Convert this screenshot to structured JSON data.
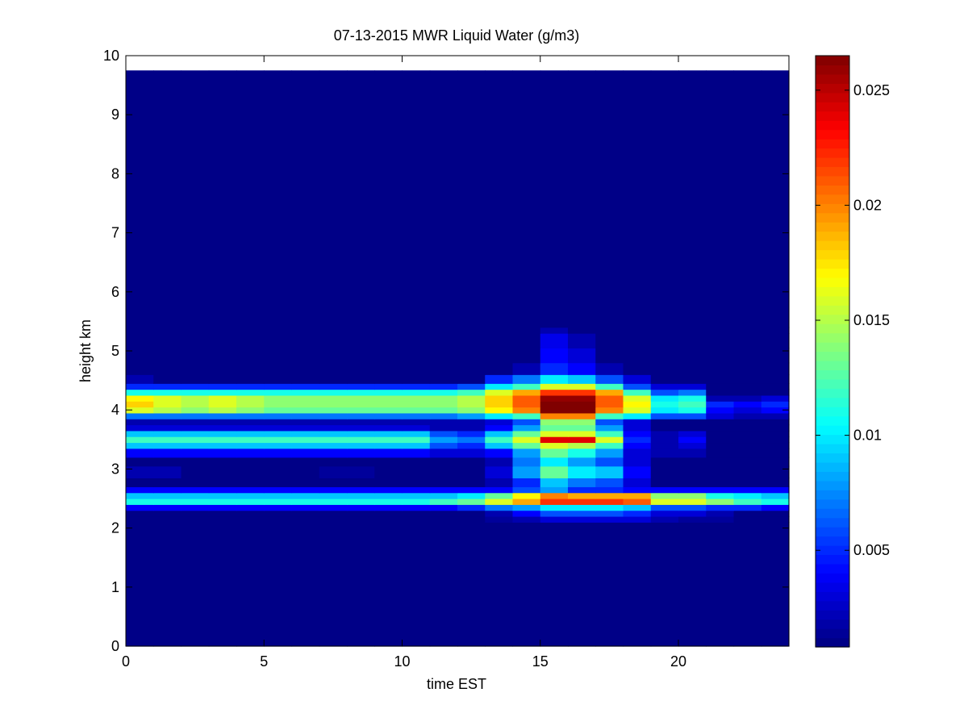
{
  "chart_data": {
    "type": "heatmap",
    "title": "07-13-2015 MWR Liquid Water (g/m3)",
    "xlabel": "time EST",
    "ylabel": "height km",
    "xlim": [
      0,
      24
    ],
    "ylim": [
      0,
      10
    ],
    "x_ticks": [
      0,
      5,
      10,
      15,
      20
    ],
    "y_ticks": [
      0,
      1,
      2,
      3,
      4,
      5,
      6,
      7,
      8,
      9,
      10
    ],
    "colormap": "jet",
    "color_limits": [
      0.0008,
      0.0265
    ],
    "colorbar_ticks": [
      0.005,
      0.01,
      0.015,
      0.02,
      0.025
    ],
    "colorbar_tick_labels": [
      "0.005",
      "0.01",
      "0.015",
      "0.02",
      "0.025"
    ],
    "time_hours": [
      0,
      1,
      2,
      3,
      4,
      5,
      6,
      7,
      8,
      9,
      10,
      11,
      12,
      13,
      14,
      15,
      16,
      17,
      18,
      19,
      20,
      21,
      22,
      23
    ],
    "height_bins_km": [
      [
        0,
        2.1
      ],
      [
        2.1,
        2.2
      ],
      [
        2.2,
        2.3
      ],
      [
        2.3,
        2.4
      ],
      [
        2.4,
        2.5
      ],
      [
        2.5,
        2.6
      ],
      [
        2.6,
        2.7
      ],
      [
        2.7,
        2.85
      ],
      [
        2.85,
        3.05
      ],
      [
        3.05,
        3.2
      ],
      [
        3.2,
        3.35
      ],
      [
        3.35,
        3.45
      ],
      [
        3.45,
        3.55
      ],
      [
        3.55,
        3.65
      ],
      [
        3.65,
        3.75
      ],
      [
        3.75,
        3.85
      ],
      [
        3.85,
        3.95
      ],
      [
        3.95,
        4.05
      ],
      [
        4.05,
        4.15
      ],
      [
        4.15,
        4.25
      ],
      [
        4.25,
        4.35
      ],
      [
        4.35,
        4.45
      ],
      [
        4.45,
        4.6
      ],
      [
        4.6,
        4.8
      ],
      [
        4.8,
        5.05
      ],
      [
        5.05,
        5.3
      ],
      [
        5.3,
        5.4
      ],
      [
        5.4,
        9.75
      ]
    ],
    "liquid_water_g_m3": [
      [
        0.001,
        0.001,
        0.001,
        0.001,
        0.001,
        0.001,
        0.001,
        0.001,
        0.001,
        0.001,
        0.001,
        0.001,
        0.001,
        0.001,
        0.001,
        0.001,
        0.001,
        0.001,
        0.001,
        0.001,
        0.001,
        0.001,
        0.001,
        0.001
      ],
      [
        0.001,
        0.001,
        0.001,
        0.001,
        0.001,
        0.001,
        0.001,
        0.001,
        0.001,
        0.001,
        0.001,
        0.001,
        0.001,
        0.0015,
        0.002,
        0.003,
        0.003,
        0.003,
        0.003,
        0.002,
        0.0015,
        0.0015,
        0.001,
        0.001
      ],
      [
        0.001,
        0.001,
        0.001,
        0.001,
        0.001,
        0.001,
        0.001,
        0.001,
        0.001,
        0.001,
        0.001,
        0.001,
        0.001,
        0.002,
        0.004,
        0.006,
        0.006,
        0.006,
        0.005,
        0.003,
        0.003,
        0.002,
        0.001,
        0.001
      ],
      [
        0.004,
        0.004,
        0.004,
        0.004,
        0.004,
        0.004,
        0.004,
        0.004,
        0.004,
        0.004,
        0.004,
        0.004,
        0.005,
        0.007,
        0.008,
        0.01,
        0.01,
        0.01,
        0.009,
        0.006,
        0.006,
        0.005,
        0.005,
        0.004
      ],
      [
        0.011,
        0.011,
        0.011,
        0.011,
        0.011,
        0.011,
        0.011,
        0.011,
        0.011,
        0.011,
        0.011,
        0.012,
        0.013,
        0.016,
        0.019,
        0.022,
        0.022,
        0.022,
        0.021,
        0.016,
        0.016,
        0.014,
        0.012,
        0.011
      ],
      [
        0.009,
        0.009,
        0.009,
        0.009,
        0.009,
        0.009,
        0.009,
        0.009,
        0.009,
        0.009,
        0.009,
        0.009,
        0.01,
        0.013,
        0.017,
        0.02,
        0.019,
        0.019,
        0.019,
        0.014,
        0.014,
        0.011,
        0.01,
        0.009
      ],
      [
        0.004,
        0.004,
        0.004,
        0.004,
        0.004,
        0.004,
        0.004,
        0.004,
        0.004,
        0.004,
        0.004,
        0.004,
        0.004,
        0.004,
        0.006,
        0.008,
        0.005,
        0.005,
        0.004,
        0.004,
        0.004,
        0.004,
        0.004,
        0.004
      ],
      [
        0.001,
        0.001,
        0.001,
        0.001,
        0.001,
        0.001,
        0.001,
        0.001,
        0.001,
        0.001,
        0.001,
        0.001,
        0.001,
        0.002,
        0.005,
        0.009,
        0.007,
        0.006,
        0.003,
        0.001,
        0.001,
        0.001,
        0.001,
        0.001
      ],
      [
        0.002,
        0.002,
        0.001,
        0.001,
        0.001,
        0.001,
        0.001,
        0.0015,
        0.0015,
        0.001,
        0.001,
        0.001,
        0.001,
        0.003,
        0.008,
        0.013,
        0.01,
        0.009,
        0.004,
        0.001,
        0.001,
        0.001,
        0.001,
        0.001
      ],
      [
        0.001,
        0.001,
        0.001,
        0.001,
        0.001,
        0.001,
        0.001,
        0.001,
        0.001,
        0.001,
        0.001,
        0.001,
        0.001,
        0.002,
        0.007,
        0.01,
        0.008,
        0.006,
        0.003,
        0.001,
        0.001,
        0.001,
        0.001,
        0.001
      ],
      [
        0.004,
        0.004,
        0.004,
        0.004,
        0.004,
        0.004,
        0.004,
        0.004,
        0.004,
        0.004,
        0.004,
        0.003,
        0.003,
        0.004,
        0.008,
        0.013,
        0.011,
        0.008,
        0.003,
        0.002,
        0.002,
        0.001,
        0.001,
        0.001
      ],
      [
        0.009,
        0.009,
        0.009,
        0.009,
        0.009,
        0.009,
        0.009,
        0.009,
        0.009,
        0.009,
        0.009,
        0.006,
        0.005,
        0.009,
        0.013,
        0.016,
        0.015,
        0.012,
        0.004,
        0.002,
        0.003,
        0.001,
        0.001,
        0.001
      ],
      [
        0.012,
        0.012,
        0.012,
        0.012,
        0.012,
        0.012,
        0.012,
        0.012,
        0.012,
        0.012,
        0.012,
        0.008,
        0.007,
        0.012,
        0.016,
        0.024,
        0.024,
        0.016,
        0.005,
        0.002,
        0.004,
        0.001,
        0.001,
        0.001
      ],
      [
        0.009,
        0.009,
        0.009,
        0.009,
        0.009,
        0.009,
        0.009,
        0.009,
        0.009,
        0.009,
        0.009,
        0.006,
        0.005,
        0.009,
        0.013,
        0.016,
        0.016,
        0.012,
        0.004,
        0.002,
        0.003,
        0.001,
        0.001,
        0.001
      ],
      [
        0.003,
        0.003,
        0.003,
        0.003,
        0.003,
        0.003,
        0.003,
        0.003,
        0.003,
        0.003,
        0.003,
        0.002,
        0.002,
        0.004,
        0.008,
        0.013,
        0.013,
        0.008,
        0.003,
        0.001,
        0.001,
        0.001,
        0.001,
        0.001
      ],
      [
        0.002,
        0.002,
        0.002,
        0.002,
        0.002,
        0.002,
        0.002,
        0.002,
        0.002,
        0.002,
        0.002,
        0.002,
        0.002,
        0.003,
        0.006,
        0.014,
        0.014,
        0.006,
        0.003,
        0.001,
        0.001,
        0.001,
        0.001,
        0.001
      ],
      [
        0.007,
        0.007,
        0.007,
        0.007,
        0.007,
        0.007,
        0.007,
        0.007,
        0.007,
        0.007,
        0.007,
        0.007,
        0.008,
        0.01,
        0.012,
        0.02,
        0.02,
        0.012,
        0.01,
        0.006,
        0.006,
        0.003,
        0.002,
        0.002
      ],
      [
        0.016,
        0.015,
        0.014,
        0.015,
        0.014,
        0.013,
        0.013,
        0.013,
        0.013,
        0.013,
        0.013,
        0.013,
        0.014,
        0.017,
        0.02,
        0.0265,
        0.0265,
        0.02,
        0.016,
        0.01,
        0.011,
        0.004,
        0.003,
        0.004
      ],
      [
        0.018,
        0.016,
        0.015,
        0.016,
        0.015,
        0.014,
        0.014,
        0.014,
        0.014,
        0.014,
        0.014,
        0.014,
        0.015,
        0.018,
        0.021,
        0.0265,
        0.0265,
        0.021,
        0.017,
        0.011,
        0.012,
        0.005,
        0.004,
        0.005
      ],
      [
        0.017,
        0.016,
        0.015,
        0.016,
        0.015,
        0.014,
        0.014,
        0.014,
        0.014,
        0.014,
        0.014,
        0.014,
        0.015,
        0.018,
        0.021,
        0.026,
        0.026,
        0.021,
        0.016,
        0.01,
        0.011,
        0.002,
        0.002,
        0.003
      ],
      [
        0.011,
        0.011,
        0.011,
        0.011,
        0.011,
        0.011,
        0.011,
        0.011,
        0.011,
        0.011,
        0.011,
        0.011,
        0.012,
        0.016,
        0.019,
        0.022,
        0.022,
        0.019,
        0.012,
        0.006,
        0.007,
        0.001,
        0.001,
        0.001
      ],
      [
        0.005,
        0.005,
        0.005,
        0.005,
        0.005,
        0.005,
        0.005,
        0.005,
        0.005,
        0.005,
        0.005,
        0.005,
        0.006,
        0.01,
        0.012,
        0.016,
        0.016,
        0.012,
        0.006,
        0.003,
        0.003,
        0.001,
        0.001,
        0.001
      ],
      [
        0.002,
        0.001,
        0.001,
        0.001,
        0.001,
        0.001,
        0.001,
        0.001,
        0.001,
        0.001,
        0.001,
        0.001,
        0.001,
        0.005,
        0.007,
        0.01,
        0.009,
        0.006,
        0.003,
        0.001,
        0.001,
        0.001,
        0.001,
        0.001
      ],
      [
        0.001,
        0.001,
        0.001,
        0.001,
        0.001,
        0.001,
        0.001,
        0.001,
        0.001,
        0.001,
        0.001,
        0.001,
        0.001,
        0.001,
        0.002,
        0.005,
        0.004,
        0.002,
        0.001,
        0.001,
        0.001,
        0.001,
        0.001,
        0.001
      ],
      [
        0.001,
        0.001,
        0.001,
        0.001,
        0.001,
        0.001,
        0.001,
        0.001,
        0.001,
        0.001,
        0.001,
        0.001,
        0.001,
        0.001,
        0.001,
        0.004,
        0.003,
        0.001,
        0.001,
        0.001,
        0.001,
        0.001,
        0.001,
        0.001
      ],
      [
        0.001,
        0.001,
        0.001,
        0.001,
        0.001,
        0.001,
        0.001,
        0.001,
        0.001,
        0.001,
        0.001,
        0.001,
        0.001,
        0.001,
        0.001,
        0.0035,
        0.002,
        0.001,
        0.001,
        0.001,
        0.001,
        0.001,
        0.001,
        0.001
      ],
      [
        0.001,
        0.001,
        0.001,
        0.001,
        0.001,
        0.001,
        0.001,
        0.001,
        0.001,
        0.001,
        0.001,
        0.001,
        0.001,
        0.001,
        0.001,
        0.002,
        0.001,
        0.001,
        0.001,
        0.001,
        0.001,
        0.001,
        0.001,
        0.001
      ],
      [
        0.001,
        0.001,
        0.001,
        0.001,
        0.001,
        0.001,
        0.001,
        0.001,
        0.001,
        0.001,
        0.001,
        0.001,
        0.001,
        0.001,
        0.001,
        0.001,
        0.001,
        0.001,
        0.001,
        0.001,
        0.001,
        0.001,
        0.001,
        0.001
      ]
    ]
  }
}
